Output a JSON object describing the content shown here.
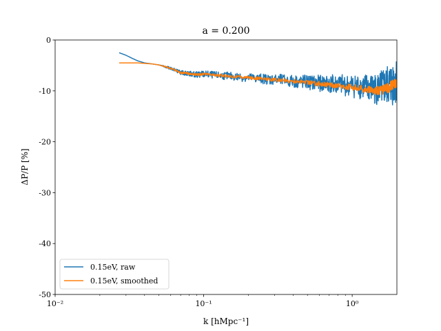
{
  "chart_data": {
    "type": "line",
    "title": "a = 0.200",
    "xlabel": "k [hMpc⁻¹]",
    "ylabel": "ΔP/P [%]",
    "xscale": "log",
    "xlim": [
      0.01,
      2.0
    ],
    "ylim": [
      -50,
      0
    ],
    "x_ticks": [
      {
        "value": 0.01,
        "label": "10⁻²"
      },
      {
        "value": 0.1,
        "label": "10⁻¹"
      },
      {
        "value": 1.0,
        "label": "10⁰"
      }
    ],
    "y_ticks": [
      {
        "value": 0,
        "label": "0"
      },
      {
        "value": -10,
        "label": "-10"
      },
      {
        "value": -20,
        "label": "-20"
      },
      {
        "value": -30,
        "label": "-30"
      },
      {
        "value": -40,
        "label": "-40"
      },
      {
        "value": -50,
        "label": "-50"
      }
    ],
    "grid": false,
    "legend_position": "lower-left",
    "series": [
      {
        "name": "0.15eV, raw",
        "color": "#1f77b4",
        "x": [
          0.027,
          0.03,
          0.033,
          0.036,
          0.04,
          0.045,
          0.05,
          0.056,
          0.063,
          0.07,
          0.08,
          0.09,
          0.1,
          0.12,
          0.15,
          0.2,
          0.25,
          0.3,
          0.4,
          0.5,
          0.6,
          0.7,
          0.8,
          1.0,
          1.2,
          1.4,
          1.6,
          1.8,
          2.0
        ],
        "y": [
          -2.5,
          -3.0,
          -3.6,
          -4.1,
          -4.5,
          -4.7,
          -4.9,
          -5.3,
          -5.8,
          -6.4,
          -6.6,
          -6.8,
          -6.7,
          -6.9,
          -7.1,
          -7.4,
          -7.6,
          -7.8,
          -8.1,
          -8.3,
          -8.5,
          -8.6,
          -8.8,
          -9.0,
          -9.2,
          -9.6,
          -9.5,
          -8.8,
          -8.0
        ],
        "band": [
          0.0,
          0.0,
          0.0,
          0.0,
          0.0,
          0.0,
          0.0,
          0.2,
          0.3,
          0.4,
          0.5,
          0.6,
          0.7,
          0.7,
          0.8,
          0.9,
          1.0,
          1.1,
          1.3,
          1.5,
          1.6,
          1.8,
          2.0,
          2.3,
          2.6,
          3.0,
          3.6,
          4.2,
          4.8
        ]
      },
      {
        "name": "0.15eV, smoothed",
        "color": "#ff7f0e",
        "x": [
          0.027,
          0.03,
          0.033,
          0.036,
          0.04,
          0.045,
          0.05,
          0.056,
          0.063,
          0.07,
          0.08,
          0.09,
          0.1,
          0.12,
          0.15,
          0.2,
          0.25,
          0.3,
          0.4,
          0.5,
          0.6,
          0.7,
          0.8,
          1.0,
          1.2,
          1.4,
          1.6,
          1.8,
          2.0
        ],
        "y": [
          -4.5,
          -4.5,
          -4.5,
          -4.5,
          -4.6,
          -4.7,
          -4.9,
          -5.3,
          -5.8,
          -6.4,
          -6.6,
          -6.8,
          -6.7,
          -6.9,
          -7.1,
          -7.4,
          -7.6,
          -7.8,
          -8.1,
          -8.3,
          -8.6,
          -8.8,
          -9.0,
          -9.3,
          -9.6,
          -10.0,
          -9.8,
          -9.2,
          -8.2
        ],
        "band": [
          0.0,
          0.0,
          0.0,
          0.0,
          0.0,
          0.0,
          0.0,
          0.1,
          0.1,
          0.2,
          0.2,
          0.2,
          0.2,
          0.3,
          0.3,
          0.3,
          0.3,
          0.4,
          0.4,
          0.4,
          0.5,
          0.5,
          0.5,
          0.6,
          0.7,
          0.8,
          0.9,
          1.0,
          1.1
        ]
      }
    ]
  }
}
